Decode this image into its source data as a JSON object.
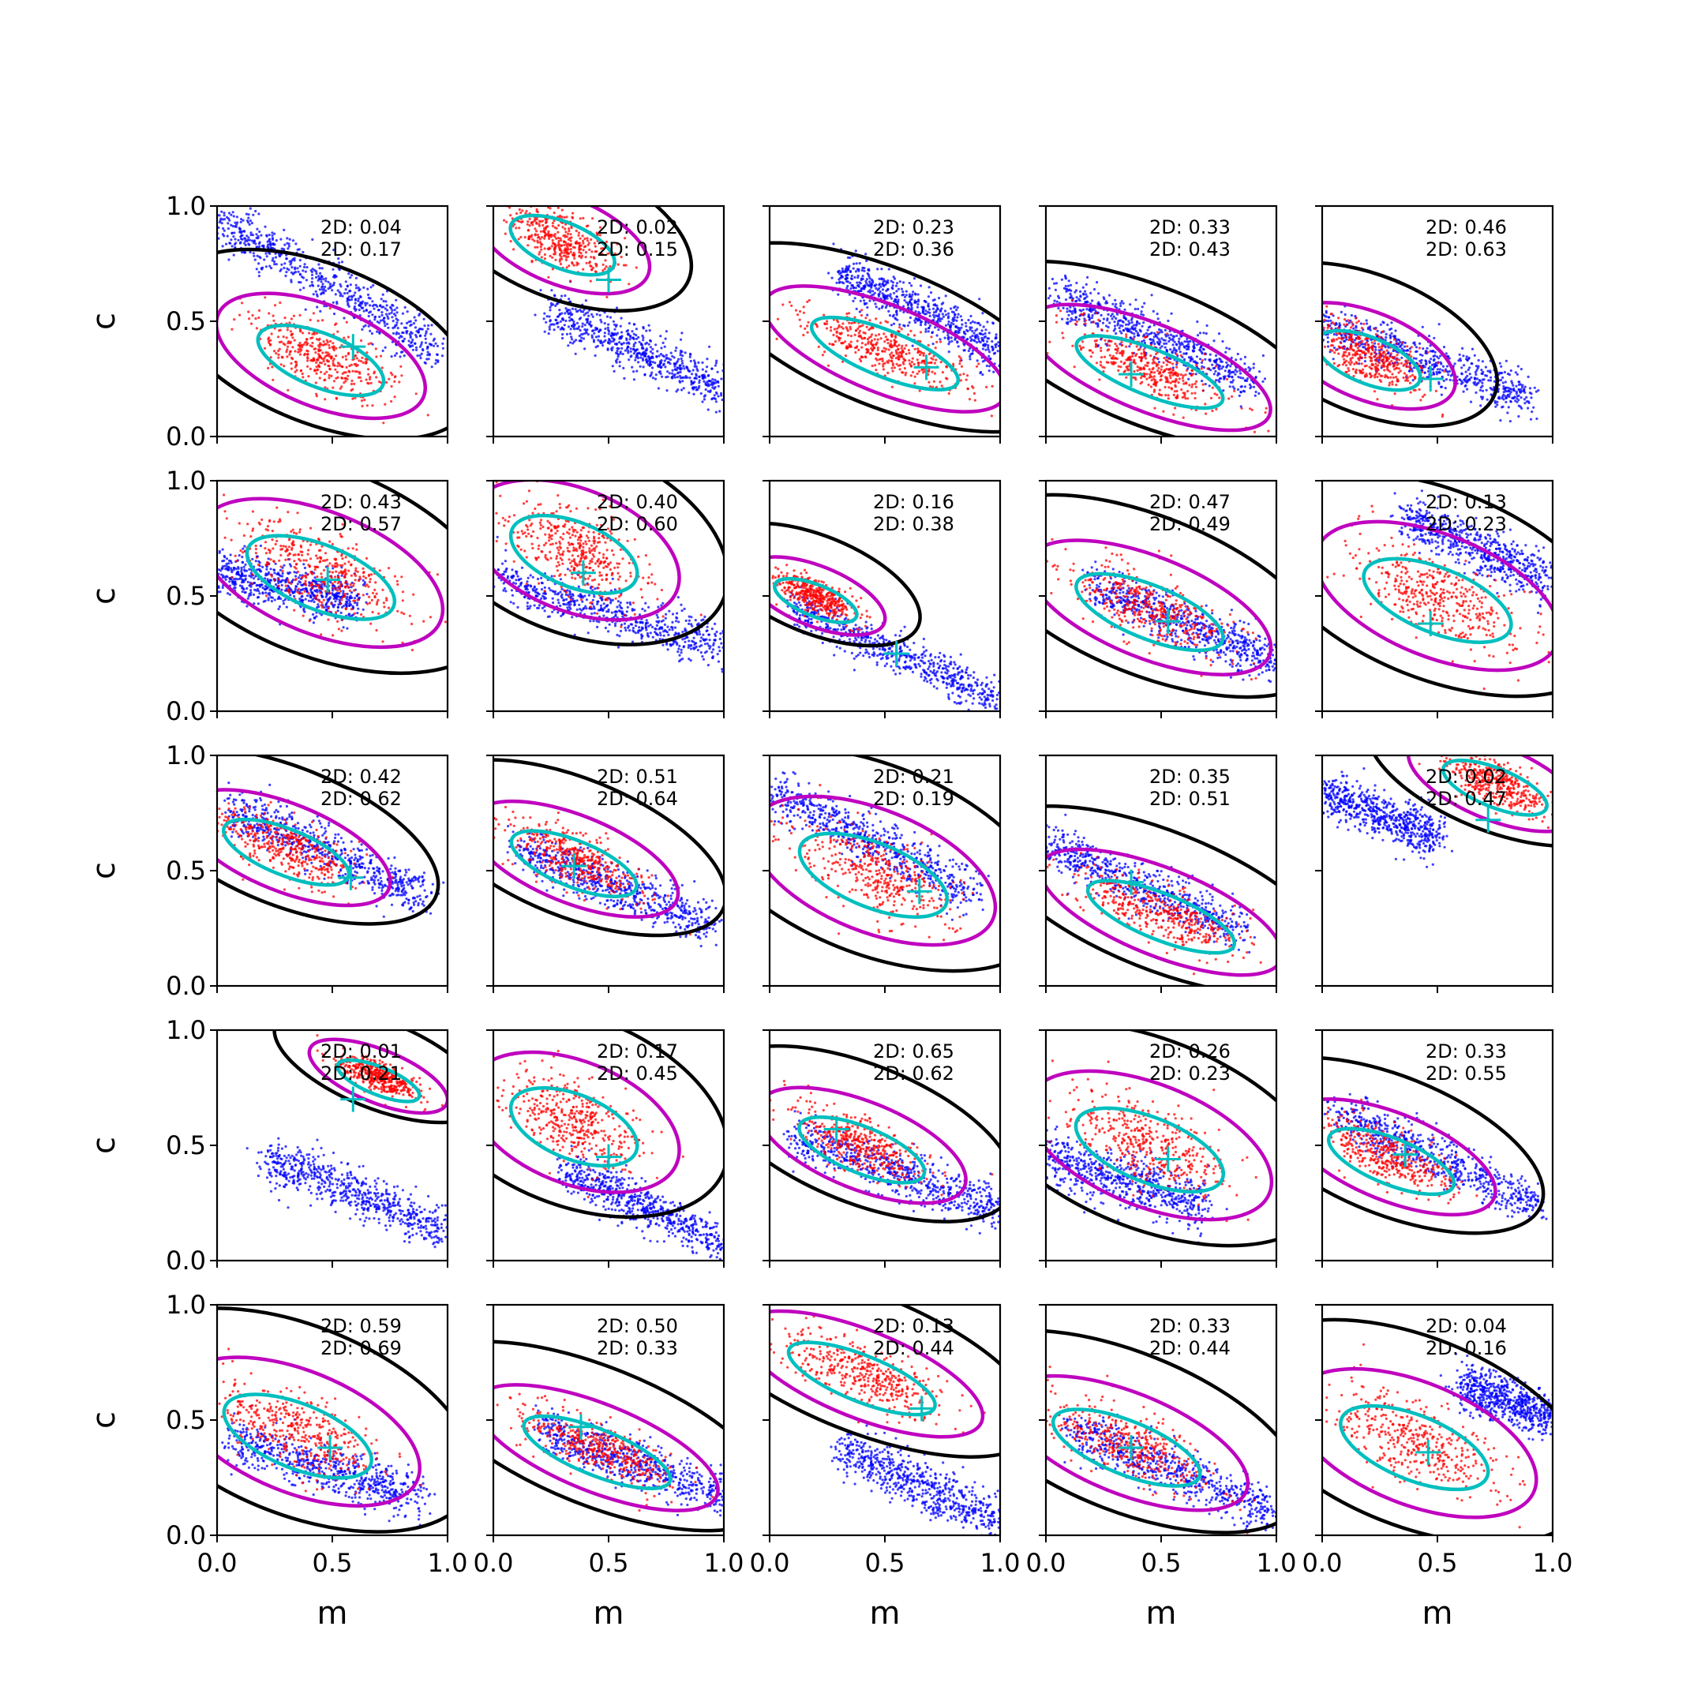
{
  "figure": {
    "xlabel": "m",
    "ylabel": "c",
    "grid_rows": 5,
    "grid_cols": 5,
    "xlim": [
      0,
      1
    ],
    "ylim": [
      0,
      1
    ],
    "x_ticks": [
      0.0,
      0.5,
      1.0
    ],
    "y_ticks": [
      0.0,
      0.5,
      1.0
    ],
    "x_tick_labels": [
      "0.0",
      "0.5",
      "1.0"
    ],
    "y_tick_labels": [
      "0.0",
      "0.5",
      "1.0"
    ],
    "colors": {
      "scatter_a": "#0000ff",
      "scatter_b": "#ff0000",
      "contour_outer": "#000000",
      "contour_mid": "#bf00bf",
      "contour_inner": "#00bfbf",
      "marker": "#00bfbf"
    }
  },
  "chart_data": {
    "type": "scatter",
    "panels": [
      {
        "labels": [
          "2D: 0.04",
          "2D: 0.17"
        ],
        "marker": [
          0.59,
          0.39
        ],
        "blue": {
          "m": [
            0.0,
            0.95
          ],
          "w": 0.06,
          "slope": -0.6,
          "spread": 0.05,
          "range": [
            0.0,
            0.95
          ]
        },
        "red": {
          "center": [
            0.45,
            0.35
          ],
          "spread": [
            0.25,
            0.12
          ]
        }
      },
      {
        "labels": [
          "2D: 0.02",
          "2D: 0.15"
        ],
        "marker": [
          0.5,
          0.68
        ],
        "blue": {
          "m": [
            0.25,
            0.55
          ],
          "w": 0.06,
          "slope": -0.45,
          "spread": 0.05,
          "range": [
            0.25,
            1.0
          ]
        },
        "red": {
          "center": [
            0.3,
            0.85
          ],
          "spread": [
            0.2,
            0.1
          ]
        }
      },
      {
        "labels": [
          "2D: 0.23",
          "2D: 0.36"
        ],
        "marker": [
          0.68,
          0.3
        ],
        "blue": {
          "m": [
            0.3,
            0.72
          ],
          "w": 0.06,
          "slope": -0.5,
          "spread": 0.05,
          "range": [
            0.3,
            1.0
          ]
        },
        "red": {
          "center": [
            0.5,
            0.38
          ],
          "spread": [
            0.3,
            0.1
          ]
        }
      },
      {
        "labels": [
          "2D: 0.33",
          "2D: 0.43"
        ],
        "marker": [
          0.37,
          0.27
        ],
        "blue": {
          "m": [
            0.1,
            0.6
          ],
          "w": 0.06,
          "slope": -0.45,
          "spread": 0.05,
          "range": [
            0.05,
            0.9
          ]
        },
        "red": {
          "center": [
            0.45,
            0.3
          ],
          "spread": [
            0.3,
            0.1
          ]
        }
      },
      {
        "labels": [
          "2D: 0.46",
          "2D: 0.63"
        ],
        "marker": [
          0.47,
          0.25
        ],
        "blue": {
          "m": [
            0.1,
            0.45
          ],
          "w": 0.06,
          "slope": -0.35,
          "spread": 0.05,
          "range": [
            0.0,
            0.9
          ]
        },
        "red": {
          "center": [
            0.2,
            0.35
          ],
          "spread": [
            0.2,
            0.1
          ]
        }
      },
      {
        "labels": [
          "2D: 0.43",
          "2D: 0.57"
        ],
        "marker": [
          0.48,
          0.57
        ],
        "blue": {
          "m": [
            0.0,
            0.6
          ],
          "w": 0.06,
          "slope": -0.2,
          "spread": 0.05,
          "range": [
            0.0,
            0.6
          ]
        },
        "red": {
          "center": [
            0.45,
            0.6
          ],
          "spread": [
            0.3,
            0.15
          ]
        }
      },
      {
        "labels": [
          "2D: 0.40",
          "2D: 0.60"
        ],
        "marker": [
          0.39,
          0.6
        ],
        "blue": {
          "m": [
            0.1,
            0.55
          ],
          "w": 0.06,
          "slope": -0.3,
          "spread": 0.05,
          "range": [
            0.0,
            1.0
          ]
        },
        "red": {
          "center": [
            0.35,
            0.7
          ],
          "spread": [
            0.25,
            0.15
          ]
        }
      },
      {
        "labels": [
          "2D: 0.16",
          "2D: 0.38"
        ],
        "marker": [
          0.55,
          0.25
        ],
        "blue": {
          "m": [
            0.1,
            0.45
          ],
          "w": 0.06,
          "slope": -0.45,
          "spread": 0.04,
          "range": [
            0.1,
            1.0
          ]
        },
        "red": {
          "center": [
            0.2,
            0.5
          ],
          "spread": [
            0.15,
            0.06
          ]
        }
      },
      {
        "labels": [
          "2D: 0.47",
          "2D: 0.49"
        ],
        "marker": [
          0.53,
          0.39
        ],
        "blue": {
          "m": [
            0.3,
            0.5
          ],
          "w": 0.06,
          "slope": -0.4,
          "spread": 0.05,
          "range": [
            0.2,
            1.0
          ]
        },
        "red": {
          "center": [
            0.45,
            0.45
          ],
          "spread": [
            0.3,
            0.12
          ]
        }
      },
      {
        "labels": [
          "2D: 0.13",
          "2D: 0.23"
        ],
        "marker": [
          0.47,
          0.38
        ],
        "blue": {
          "m": [
            0.35,
            0.85
          ],
          "w": 0.06,
          "slope": -0.45,
          "spread": 0.05,
          "range": [
            0.35,
            1.0
          ]
        },
        "red": {
          "center": [
            0.5,
            0.5
          ],
          "spread": [
            0.3,
            0.15
          ]
        }
      },
      {
        "labels": [
          "2D: 0.42",
          "2D: 0.62"
        ],
        "marker": [
          0.58,
          0.47
        ],
        "blue": {
          "m": [
            0.1,
            0.75
          ],
          "w": 0.06,
          "slope": -0.45,
          "spread": 0.05,
          "range": [
            0.05,
            0.9
          ]
        },
        "red": {
          "center": [
            0.3,
            0.6
          ],
          "spread": [
            0.25,
            0.1
          ]
        }
      },
      {
        "labels": [
          "2D: 0.51",
          "2D: 0.64"
        ],
        "marker": [
          0.35,
          0.52
        ],
        "blue": {
          "m": [
            0.1,
            0.6
          ],
          "w": 0.06,
          "slope": -0.4,
          "spread": 0.05,
          "range": [
            0.1,
            0.95
          ]
        },
        "red": {
          "center": [
            0.35,
            0.55
          ],
          "spread": [
            0.25,
            0.1
          ]
        }
      },
      {
        "labels": [
          "2D: 0.21",
          "2D: 0.19"
        ],
        "marker": [
          0.65,
          0.41
        ],
        "blue": {
          "m": [
            0.0,
            0.85
          ],
          "w": 0.06,
          "slope": -0.5,
          "spread": 0.05,
          "range": [
            0.0,
            0.9
          ]
        },
        "red": {
          "center": [
            0.45,
            0.5
          ],
          "spread": [
            0.3,
            0.15
          ]
        }
      },
      {
        "labels": [
          "2D: 0.35",
          "2D: 0.51"
        ],
        "marker": [
          0.37,
          0.45
        ],
        "blue": {
          "m": [
            0.0,
            0.62
          ],
          "w": 0.06,
          "slope": -0.45,
          "spread": 0.05,
          "range": [
            0.0,
            0.85
          ]
        },
        "red": {
          "center": [
            0.5,
            0.32
          ],
          "spread": [
            0.3,
            0.1
          ]
        }
      },
      {
        "labels": [
          "2D: 0.02",
          "2D: 0.47"
        ],
        "marker": [
          0.72,
          0.72
        ],
        "blue": {
          "m": [
            0.1,
            0.8
          ],
          "w": 0.06,
          "slope": -0.4,
          "spread": 0.05,
          "range": [
            0.0,
            0.5
          ]
        },
        "red": {
          "center": [
            0.75,
            0.88
          ],
          "spread": [
            0.2,
            0.08
          ]
        }
      },
      {
        "labels": [
          "2D: 0.01",
          "2D: 0.21"
        ],
        "marker": [
          0.59,
          0.7
        ],
        "blue": {
          "m": [
            0.2,
            0.45
          ],
          "w": 0.06,
          "slope": -0.4,
          "spread": 0.05,
          "range": [
            0.2,
            1.0
          ]
        },
        "red": {
          "center": [
            0.7,
            0.8
          ],
          "spread": [
            0.15,
            0.05
          ]
        }
      },
      {
        "labels": [
          "2D: 0.17",
          "2D: 0.45"
        ],
        "marker": [
          0.5,
          0.45
        ],
        "blue": {
          "m": [
            0.4,
            0.35
          ],
          "w": 0.06,
          "slope": -0.45,
          "spread": 0.05,
          "range": [
            0.3,
            1.0
          ]
        },
        "red": {
          "center": [
            0.35,
            0.6
          ],
          "spread": [
            0.25,
            0.15
          ]
        }
      },
      {
        "labels": [
          "2D: 0.65",
          "2D: 0.62"
        ],
        "marker": [
          0.29,
          0.57
        ],
        "blue": {
          "m": [
            0.2,
            0.5
          ],
          "w": 0.06,
          "slope": -0.35,
          "spread": 0.05,
          "range": [
            0.1,
            1.0
          ]
        },
        "red": {
          "center": [
            0.4,
            0.5
          ],
          "spread": [
            0.25,
            0.1
          ]
        }
      },
      {
        "labels": [
          "2D: 0.26",
          "2D: 0.23"
        ],
        "marker": [
          0.53,
          0.44
        ],
        "blue": {
          "m": [
            0.0,
            0.45
          ],
          "w": 0.06,
          "slope": -0.3,
          "spread": 0.06,
          "range": [
            0.0,
            0.7
          ]
        },
        "red": {
          "center": [
            0.45,
            0.5
          ],
          "spread": [
            0.3,
            0.15
          ]
        }
      },
      {
        "labels": [
          "2D: 0.33",
          "2D: 0.55"
        ],
        "marker": [
          0.36,
          0.46
        ],
        "blue": {
          "m": [
            0.1,
            0.62
          ],
          "w": 0.06,
          "slope": -0.45,
          "spread": 0.05,
          "range": [
            0.05,
            0.95
          ]
        },
        "red": {
          "center": [
            0.3,
            0.45
          ],
          "spread": [
            0.25,
            0.1
          ]
        }
      },
      {
        "labels": [
          "2D: 0.59",
          "2D: 0.69"
        ],
        "marker": [
          0.49,
          0.38
        ],
        "blue": {
          "m": [
            0.1,
            0.4
          ],
          "w": 0.06,
          "slope": -0.3,
          "spread": 0.05,
          "range": [
            0.05,
            0.9
          ]
        },
        "red": {
          "center": [
            0.35,
            0.45
          ],
          "spread": [
            0.3,
            0.15
          ]
        }
      },
      {
        "labels": [
          "2D: 0.50",
          "2D: 0.33"
        ],
        "marker": [
          0.38,
          0.47
        ],
        "blue": {
          "m": [
            0.3,
            0.42
          ],
          "w": 0.06,
          "slope": -0.35,
          "spread": 0.05,
          "range": [
            0.2,
            1.0
          ]
        },
        "red": {
          "center": [
            0.45,
            0.38
          ],
          "spread": [
            0.3,
            0.1
          ]
        }
      },
      {
        "labels": [
          "2D: 0.13",
          "2D: 0.44"
        ],
        "marker": [
          0.66,
          0.55
        ],
        "blue": {
          "m": [
            0.3,
            0.38
          ],
          "w": 0.06,
          "slope": -0.45,
          "spread": 0.05,
          "range": [
            0.3,
            1.0
          ]
        },
        "red": {
          "center": [
            0.4,
            0.7
          ],
          "spread": [
            0.3,
            0.1
          ]
        }
      },
      {
        "labels": [
          "2D: 0.33",
          "2D: 0.44"
        ],
        "marker": [
          0.37,
          0.38
        ],
        "blue": {
          "m": [
            0.2,
            0.42
          ],
          "w": 0.06,
          "slope": -0.4,
          "spread": 0.05,
          "range": [
            0.1,
            1.0
          ]
        },
        "red": {
          "center": [
            0.35,
            0.4
          ],
          "spread": [
            0.3,
            0.12
          ]
        }
      },
      {
        "labels": [
          "2D: 0.04",
          "2D: 0.16"
        ],
        "marker": [
          0.46,
          0.36
        ],
        "blue": {
          "m": [
            0.7,
            0.62
          ],
          "w": 0.06,
          "slope": -0.4,
          "spread": 0.05,
          "range": [
            0.6,
            1.0
          ]
        },
        "red": {
          "center": [
            0.4,
            0.4
          ],
          "spread": [
            0.3,
            0.15
          ]
        }
      }
    ]
  }
}
